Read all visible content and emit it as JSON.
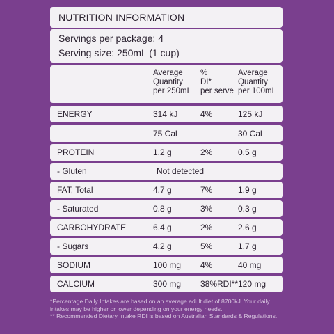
{
  "title": "NUTRITION INFORMATION",
  "servings": {
    "per_package": "Servings per package: 4",
    "serving_size": "Serving size: 250mL (1 cup)"
  },
  "header": {
    "col1": [
      "Average",
      "Quantity",
      "per 250mL"
    ],
    "col2": [
      "%",
      "DI*",
      "per serve"
    ],
    "col3": [
      "Average",
      "Quantity",
      "per 100mL"
    ]
  },
  "rows": [
    {
      "label": "ENERGY",
      "c1": "314 kJ",
      "c2": "4%",
      "c3": "125 kJ"
    },
    {
      "label": "",
      "c1": "75 Cal",
      "c2": "",
      "c3": "30 Cal"
    },
    {
      "label": "PROTEIN",
      "c1": "1.2 g",
      "c2": "2%",
      "c3": "0.5 g"
    },
    {
      "label": "- Gluten",
      "span": "Not detected"
    },
    {
      "label": "FAT, Total",
      "c1": "4.7 g",
      "c2": "7%",
      "c3": "1.9 g"
    },
    {
      "label": "- Saturated",
      "c1": "0.8 g",
      "c2": "3%",
      "c3": "0.3 g"
    },
    {
      "label": "CARBOHYDRATE",
      "c1": "6.4 g",
      "c2": "2%",
      "c3": "2.6 g"
    },
    {
      "label": "- Sugars",
      "c1": "4.2 g",
      "c2": "5%",
      "c3": "1.7 g"
    },
    {
      "label": "SODIUM",
      "c1": "100 mg",
      "c2": "4%",
      "c3": "40 mg"
    },
    {
      "label": "CALCIUM",
      "c1": "300 mg",
      "c2": "38%RDI**",
      "c3": "120 mg"
    }
  ],
  "footnotes": [
    "*Percentage Daily Intakes are based on an average adult diet of 8700kJ. Your daily",
    "intakes may be higher or lower depending on your energy needs.",
    "** Recommended Dietary Intake RDI is based on Australian Standards & Regulations."
  ]
}
